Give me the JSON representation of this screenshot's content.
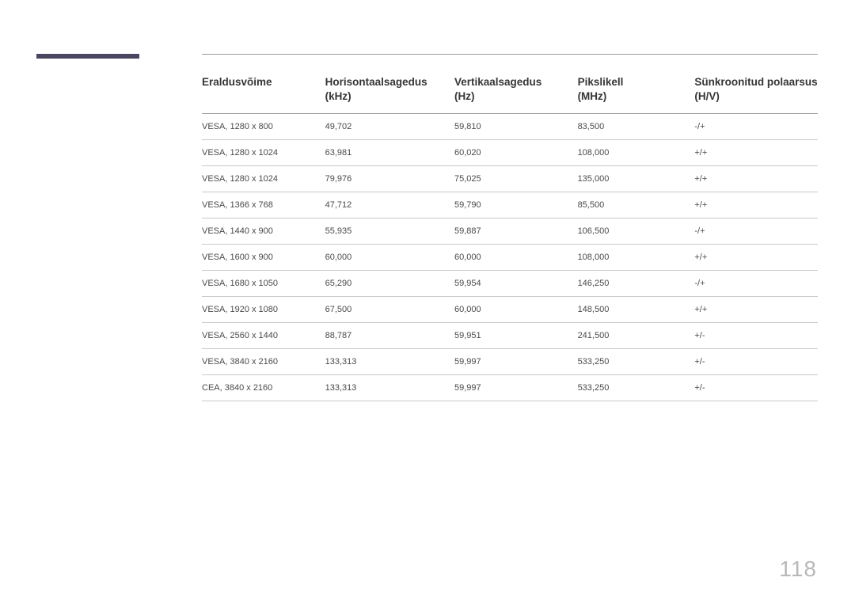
{
  "page_number": "118",
  "side_bar_color": "#4a4660",
  "table": {
    "columns": [
      {
        "label_line1": "Eraldusvõime",
        "label_line2": ""
      },
      {
        "label_line1": "Horisontaalsagedus",
        "label_line2": "(kHz)"
      },
      {
        "label_line1": "Vertikaalsagedus",
        "label_line2": "(Hz)"
      },
      {
        "label_line1": "Pikslikell",
        "label_line2": "(MHz)"
      },
      {
        "label_line1": "Sünkroonitud polaarsus",
        "label_line2": "(H/V)"
      }
    ],
    "rows": [
      [
        "VESA, 1280 x 800",
        "49,702",
        "59,810",
        "83,500",
        "-/+"
      ],
      [
        "VESA, 1280 x 1024",
        "63,981",
        "60,020",
        "108,000",
        "+/+"
      ],
      [
        "VESA, 1280 x 1024",
        "79,976",
        "75,025",
        "135,000",
        "+/+"
      ],
      [
        "VESA, 1366 x 768",
        "47,712",
        "59,790",
        "85,500",
        "+/+"
      ],
      [
        "VESA, 1440 x 900",
        "55,935",
        "59,887",
        "106,500",
        "-/+"
      ],
      [
        "VESA, 1600 x 900",
        "60,000",
        "60,000",
        "108,000",
        "+/+"
      ],
      [
        "VESA, 1680 x 1050",
        "65,290",
        "59,954",
        "146,250",
        "-/+"
      ],
      [
        "VESA, 1920 x 1080",
        "67,500",
        "60,000",
        "148,500",
        "+/+"
      ],
      [
        "VESA, 2560 x 1440",
        "88,787",
        "59,951",
        "241,500",
        "+/-"
      ],
      [
        "VESA, 3840 x 2160",
        "133,313",
        "59,997",
        "533,250",
        "+/-"
      ],
      [
        "CEA, 3840 x 2160",
        "133,313",
        "59,997",
        "533,250",
        "+/-"
      ]
    ]
  }
}
